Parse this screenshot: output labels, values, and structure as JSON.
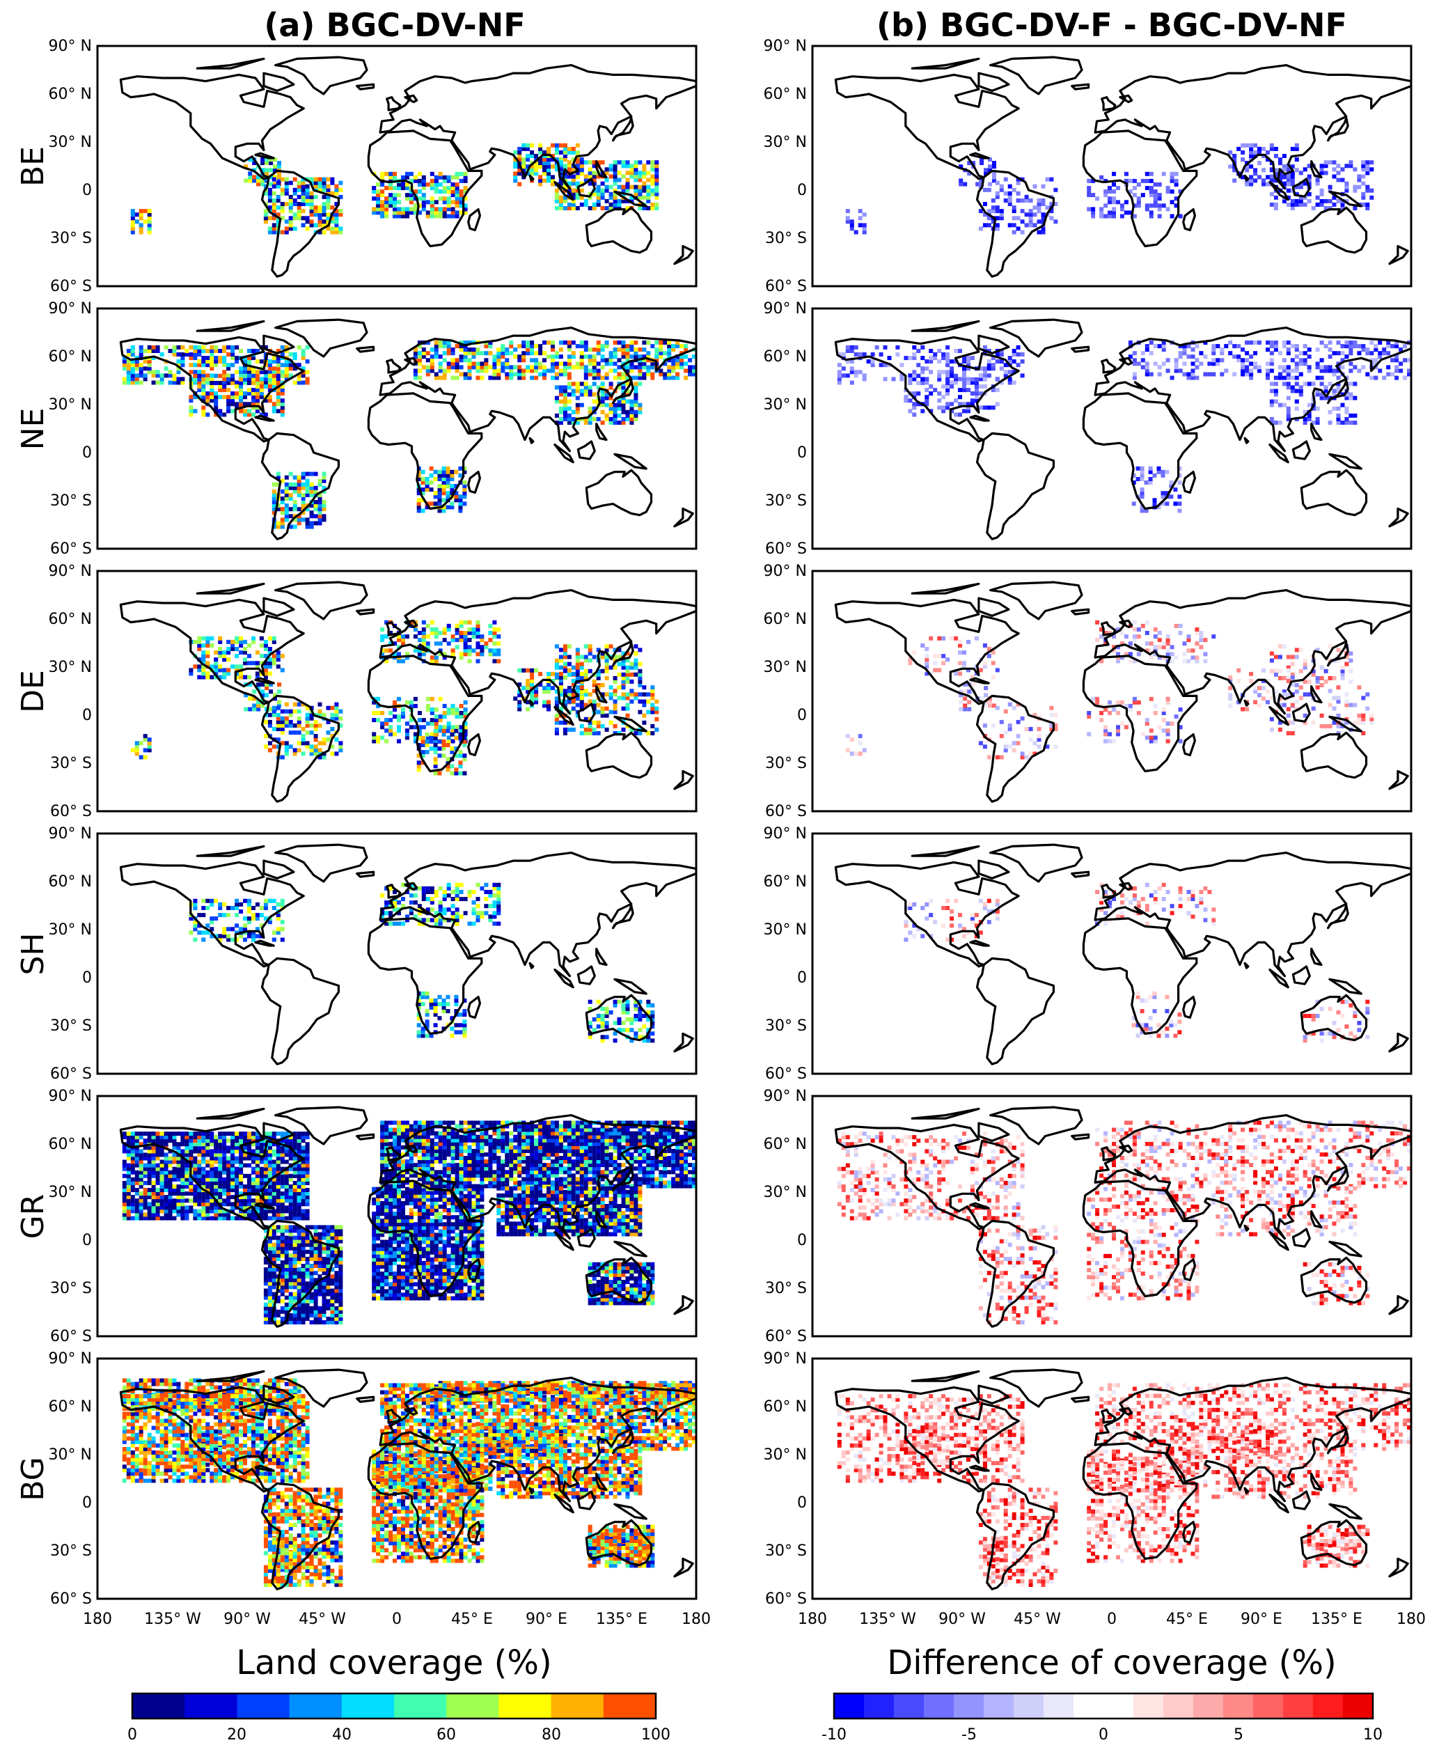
{
  "columns": [
    {
      "title": "(a) BGC-DV-NF",
      "colorbar": "cover"
    },
    {
      "title": "(b) BGC-DV-F - BGC-DV-NF",
      "colorbar": "diff"
    }
  ],
  "rows": [
    "BE",
    "NE",
    "DE",
    "SH",
    "GR",
    "BG"
  ],
  "lat_ticks": [
    "90° N",
    "60° N",
    "30° N",
    "0",
    "30° S",
    "60° S"
  ],
  "lon_ticks": [
    "180",
    "135° W",
    "90° W",
    "45° W",
    "0",
    "45° E",
    "90° E",
    "135° E",
    "180"
  ],
  "colorbars": {
    "cover": {
      "title": "Land coverage (%)",
      "ticks": [
        "0",
        "20",
        "40",
        "60",
        "80",
        "100"
      ],
      "colors": [
        "#00008f",
        "#0000d8",
        "#0040ff",
        "#0090ff",
        "#00ddff",
        "#40ffb0",
        "#a0ff50",
        "#ffff00",
        "#ffb000",
        "#ff5000"
      ]
    },
    "diff": {
      "title": "Difference of coverage (%)",
      "ticks": [
        "-10",
        "-5",
        "0",
        "5",
        "10"
      ],
      "colors": [
        "#0000ff",
        "#2222ff",
        "#4a4aff",
        "#7070ff",
        "#9494ff",
        "#b4b4ff",
        "#cfcffa",
        "#e8e8fa",
        "#ffffff",
        "#ffffff",
        "#ffe4e4",
        "#ffcaca",
        "#ffaaaa",
        "#ff8888",
        "#ff6464",
        "#ff4040",
        "#ff1c1c",
        "#ee0000"
      ]
    }
  },
  "map_colors": {
    "coast": "#000000",
    "frame": "#000000"
  }
}
